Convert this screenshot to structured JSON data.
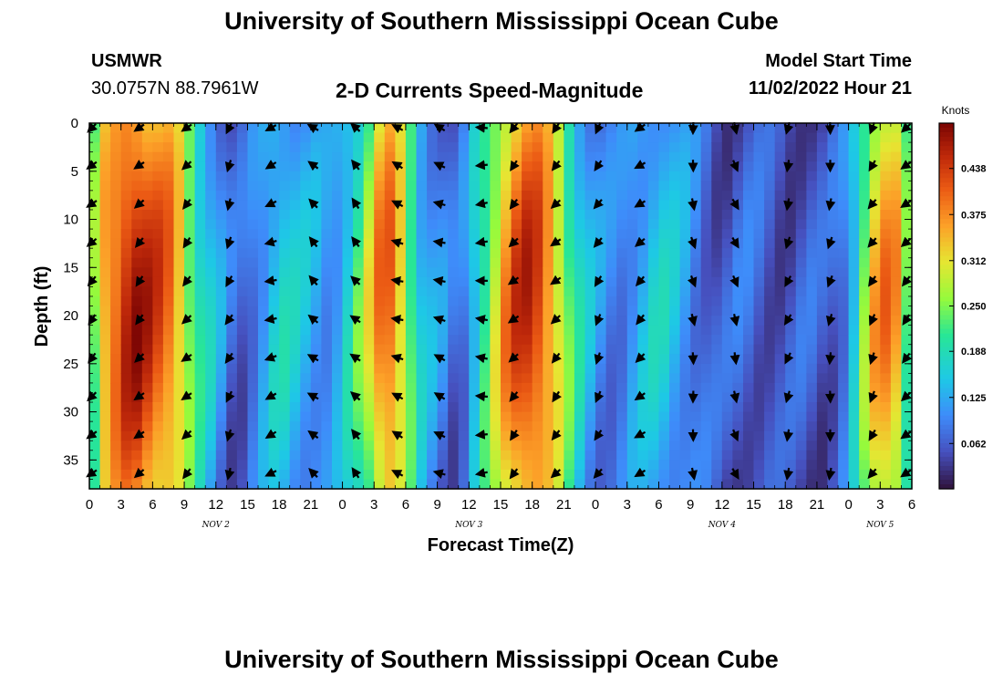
{
  "page": {
    "title_top": "University of Southern Mississippi Ocean Cube",
    "title_bottom": "University of Southern Mississippi Ocean Cube",
    "station": "USMWR",
    "coords": "30.0757N  88.7961W",
    "subtitle": "2-D Currents Speed-Magnitude",
    "start_label": "Model Start Time",
    "start_value": "11/02/2022 Hour 21"
  },
  "chart_data": {
    "type": "heatmap",
    "title": "2-D Currents Speed-Magnitude",
    "xlabel": "Forecast Time(Z)",
    "ylabel": "Depth (ft)",
    "x_range_hours": [
      0,
      78
    ],
    "y_range_ft": [
      0,
      38
    ],
    "x_ticks": [
      "0",
      "3",
      "6",
      "9",
      "12",
      "15",
      "18",
      "21",
      "0",
      "3",
      "6",
      "9",
      "12",
      "15",
      "18",
      "21",
      "0",
      "3",
      "6",
      "9",
      "12",
      "15",
      "18",
      "21",
      "0",
      "3",
      "6"
    ],
    "y_ticks": [
      0,
      5,
      10,
      15,
      20,
      25,
      30,
      35
    ],
    "day_labels": [
      {
        "label": "NOV 2",
        "hour": 12
      },
      {
        "label": "NOV 3",
        "hour": 36
      },
      {
        "label": "NOV 4",
        "hour": 60
      },
      {
        "label": "NOV 5",
        "hour": 75
      }
    ],
    "colorbar": {
      "title": "Knots",
      "min": 0,
      "max": 0.5,
      "ticks": [
        "0.438",
        "0.375",
        "0.312",
        "0.250",
        "0.188",
        "0.125",
        "0.062"
      ],
      "tick_values": [
        0.438,
        0.375,
        0.312,
        0.25,
        0.188,
        0.125,
        0.062
      ]
    },
    "speed_profile_hours": [
      0,
      1,
      4,
      8,
      10,
      11,
      12,
      13,
      14,
      16,
      18,
      20,
      23,
      25,
      27,
      28,
      30,
      31,
      32,
      33,
      34,
      35,
      36,
      38,
      40,
      42,
      44,
      46,
      48,
      50,
      52,
      54,
      56,
      58,
      60,
      62,
      64,
      66,
      68,
      70,
      72,
      73,
      75,
      77,
      78
    ],
    "speed_profile_knots": [
      0.15,
      0.32,
      0.44,
      0.36,
      0.2,
      0.16,
      0.12,
      0.08,
      0.05,
      0.1,
      0.16,
      0.13,
      0.1,
      0.18,
      0.3,
      0.4,
      0.28,
      0.16,
      0.12,
      0.1,
      0.08,
      0.05,
      0.12,
      0.24,
      0.38,
      0.42,
      0.33,
      0.18,
      0.1,
      0.08,
      0.12,
      0.15,
      0.12,
      0.08,
      0.05,
      0.07,
      0.06,
      0.05,
      0.06,
      0.05,
      0.1,
      0.2,
      0.36,
      0.32,
      0.12
    ],
    "arrow_hours": [
      0,
      4.5,
      9,
      13,
      17,
      21,
      25,
      29,
      33,
      37,
      40,
      44,
      48,
      52,
      57,
      61,
      66,
      70,
      74,
      78
    ],
    "arrow_depths_ft": [
      0,
      4,
      8,
      12,
      16,
      20,
      24,
      28,
      32,
      36
    ],
    "arrow_direction_deg": [
      135,
      135,
      135,
      115,
      160,
      220,
      225,
      200,
      200,
      180,
      135,
      135,
      120,
      140,
      80,
      70,
      110,
      100,
      120,
      135
    ]
  }
}
